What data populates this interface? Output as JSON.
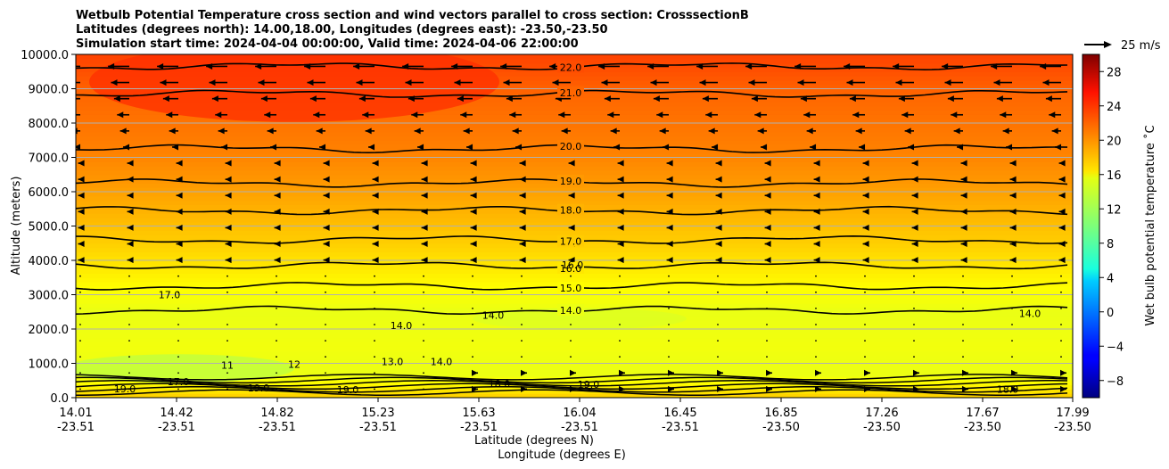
{
  "chart_data": {
    "type": "heatmap",
    "title_lines": [
      "Wetbulb Potential Temperature cross section and wind vectors parallel to cross section: CrosssectionB",
      "Latitudes (degrees north): 14.00,18.00, Longitudes (degrees east): -23.50,-23.50",
      "Simulation start time: 2024-04-04 00:00:00, Valid time: 2024-04-06 22:00:00"
    ],
    "ylabel": "Altitude (meters)",
    "xlabel_lat": "Latitude (degrees N)",
    "xlabel_lon": "Longitude (degrees E)",
    "ylim": [
      0,
      10000
    ],
    "y_ticks": [
      0,
      1000,
      2000,
      3000,
      4000,
      5000,
      6000,
      7000,
      8000,
      9000,
      10000
    ],
    "y_tick_labels": [
      "0.0",
      "1000.0",
      "2000.0",
      "3000.0",
      "4000.0",
      "5000.0",
      "6000.0",
      "7000.0",
      "8000.0",
      "9000.0",
      "10000.0"
    ],
    "grid": "horizontal",
    "x_ticks": [
      {
        "lat": "14.01",
        "lon": "-23.51"
      },
      {
        "lat": "14.42",
        "lon": "-23.51"
      },
      {
        "lat": "14.82",
        "lon": "-23.51"
      },
      {
        "lat": "15.23",
        "lon": "-23.51"
      },
      {
        "lat": "15.63",
        "lon": "-23.51"
      },
      {
        "lat": "16.04",
        "lon": "-23.51"
      },
      {
        "lat": "16.45",
        "lon": "-23.51"
      },
      {
        "lat": "16.85",
        "lon": "-23.50"
      },
      {
        "lat": "17.26",
        "lon": "-23.50"
      },
      {
        "lat": "17.67",
        "lon": "-23.50"
      },
      {
        "lat": "17.99",
        "lon": "-23.50"
      }
    ],
    "colorbar": {
      "label": "Wet bulb potential temperature ˚C",
      "range": [
        -10,
        30
      ],
      "ticks": [
        -8,
        -4,
        0,
        4,
        8,
        12,
        16,
        20,
        24,
        28
      ],
      "tick_labels": [
        "−8",
        "−4",
        "0",
        "4",
        "8",
        "12",
        "16",
        "20",
        "24",
        "28"
      ],
      "colormap": "jet"
    },
    "quiver_key": {
      "label": "25 m/s",
      "speed": 25
    },
    "contour_levels": [
      {
        "value": 22,
        "label": "22.0",
        "alt": 9650
      },
      {
        "value": 21,
        "label": "21.0",
        "alt": 8850
      },
      {
        "value": 20,
        "label": "20.0",
        "alt": 7250
      },
      {
        "value": 19,
        "label": "19.0",
        "alt": 6250
      },
      {
        "value": 18,
        "label": "18.0",
        "alt": 5450
      },
      {
        "value": 17,
        "label": "17.0",
        "alt": 4600
      },
      {
        "value": 16,
        "label": "16.0",
        "alt": 3850
      },
      {
        "value": 15,
        "label": "15.0",
        "alt": 3250
      },
      {
        "value": 14,
        "label": "14.0",
        "alt": 2550
      }
    ],
    "extra_labels": [
      "14.0",
      "14.0",
      "14.0",
      "17.0",
      "16.0",
      "19.0",
      "18.0",
      "18.0",
      "19.0",
      "13.0",
      "12",
      "11",
      "19.0",
      "19.0",
      "17.0",
      "14.0"
    ]
  }
}
